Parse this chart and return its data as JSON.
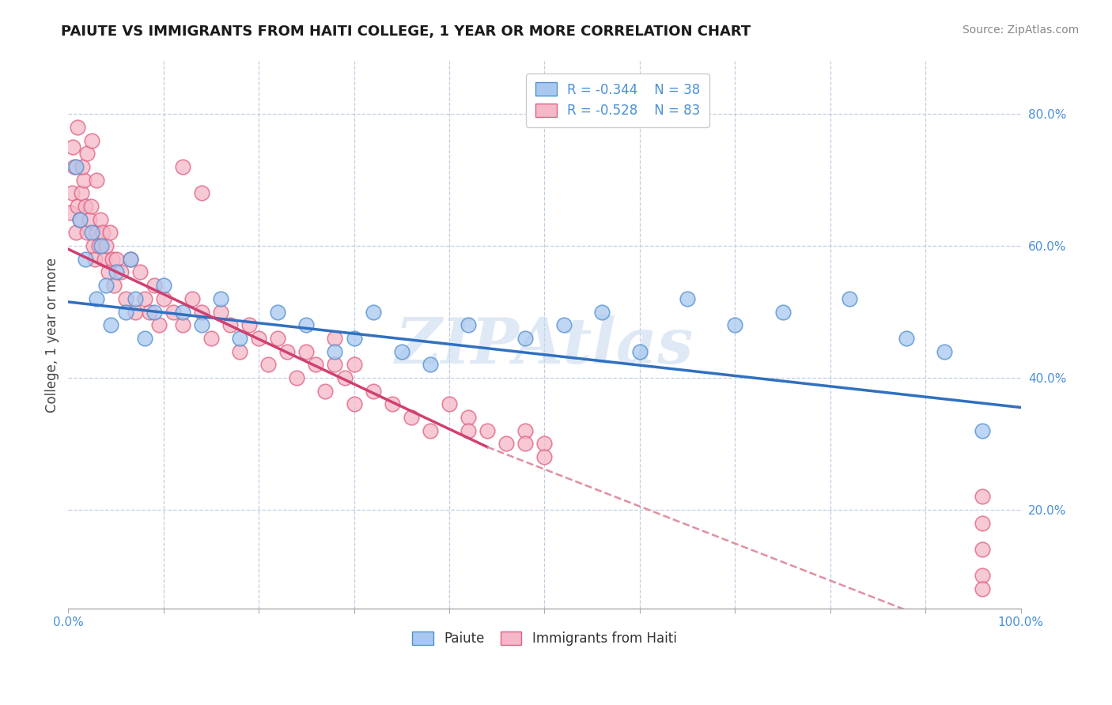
{
  "title": "PAIUTE VS IMMIGRANTS FROM HAITI COLLEGE, 1 YEAR OR MORE CORRELATION CHART",
  "source_text": "Source: ZipAtlas.com",
  "ylabel": "College, 1 year or more",
  "watermark": "ZIPAtlas",
  "legend_labels": [
    "Paiute",
    "Immigrants from Haiti"
  ],
  "legend_r": [
    "R = -0.344",
    "R = -0.528"
  ],
  "legend_n": [
    "N = 38",
    "N = 83"
  ],
  "paiute_color": "#a8c8f0",
  "haiti_color": "#f5b8c8",
  "paiute_edge_color": "#5090d0",
  "haiti_edge_color": "#e06080",
  "paiute_line_color": "#3070c0",
  "haiti_line_color": "#d04070",
  "haiti_dash_color": "#e090a0",
  "background_color": "#ffffff",
  "grid_color": "#c0cfe0",
  "axis_label_color": "#4a90d9",
  "title_color": "#1a1a1a",
  "source_color": "#888888",
  "ylabel_color": "#444444",
  "xlim": [
    0.0,
    1.0
  ],
  "ylim": [
    0.05,
    0.88
  ],
  "paiute_x": [
    0.008,
    0.012,
    0.018,
    0.025,
    0.03,
    0.035,
    0.04,
    0.045,
    0.05,
    0.06,
    0.065,
    0.07,
    0.08,
    0.09,
    0.1,
    0.12,
    0.14,
    0.16,
    0.18,
    0.22,
    0.25,
    0.28,
    0.3,
    0.32,
    0.35,
    0.38,
    0.42,
    0.48,
    0.52,
    0.56,
    0.6,
    0.65,
    0.7,
    0.75,
    0.82,
    0.88,
    0.92,
    0.96
  ],
  "paiute_y": [
    0.72,
    0.64,
    0.58,
    0.62,
    0.52,
    0.6,
    0.54,
    0.48,
    0.56,
    0.5,
    0.58,
    0.52,
    0.46,
    0.5,
    0.54,
    0.5,
    0.48,
    0.52,
    0.46,
    0.5,
    0.48,
    0.44,
    0.46,
    0.5,
    0.44,
    0.42,
    0.48,
    0.46,
    0.48,
    0.5,
    0.44,
    0.52,
    0.48,
    0.5,
    0.52,
    0.46,
    0.44,
    0.32
  ],
  "haiti_x": [
    0.002,
    0.004,
    0.006,
    0.008,
    0.01,
    0.012,
    0.014,
    0.016,
    0.018,
    0.02,
    0.022,
    0.024,
    0.026,
    0.028,
    0.03,
    0.032,
    0.034,
    0.036,
    0.038,
    0.04,
    0.042,
    0.044,
    0.046,
    0.048,
    0.05,
    0.055,
    0.06,
    0.065,
    0.07,
    0.075,
    0.08,
    0.085,
    0.09,
    0.095,
    0.1,
    0.11,
    0.12,
    0.13,
    0.14,
    0.15,
    0.16,
    0.17,
    0.18,
    0.19,
    0.2,
    0.21,
    0.22,
    0.23,
    0.24,
    0.25,
    0.26,
    0.27,
    0.28,
    0.29,
    0.3,
    0.32,
    0.34,
    0.36,
    0.38,
    0.4,
    0.42,
    0.44,
    0.46,
    0.48,
    0.5,
    0.005,
    0.01,
    0.015,
    0.02,
    0.025,
    0.03,
    0.12,
    0.14,
    0.28,
    0.3,
    0.42,
    0.48,
    0.5,
    0.96,
    0.96,
    0.96,
    0.96,
    0.96
  ],
  "haiti_y": [
    0.65,
    0.68,
    0.72,
    0.62,
    0.66,
    0.64,
    0.68,
    0.7,
    0.66,
    0.62,
    0.64,
    0.66,
    0.6,
    0.58,
    0.62,
    0.6,
    0.64,
    0.62,
    0.58,
    0.6,
    0.56,
    0.62,
    0.58,
    0.54,
    0.58,
    0.56,
    0.52,
    0.58,
    0.5,
    0.56,
    0.52,
    0.5,
    0.54,
    0.48,
    0.52,
    0.5,
    0.48,
    0.52,
    0.5,
    0.46,
    0.5,
    0.48,
    0.44,
    0.48,
    0.46,
    0.42,
    0.46,
    0.44,
    0.4,
    0.44,
    0.42,
    0.38,
    0.42,
    0.4,
    0.36,
    0.38,
    0.36,
    0.34,
    0.32,
    0.36,
    0.34,
    0.32,
    0.3,
    0.32,
    0.3,
    0.75,
    0.78,
    0.72,
    0.74,
    0.76,
    0.7,
    0.72,
    0.68,
    0.46,
    0.42,
    0.32,
    0.3,
    0.28,
    0.22,
    0.18,
    0.14,
    0.1,
    0.08
  ],
  "paiute_trend": [
    0.0,
    1.0,
    0.515,
    0.355
  ],
  "haiti_solid": [
    0.0,
    0.44,
    0.595,
    0.295
  ],
  "haiti_dash": [
    0.44,
    1.0,
    0.295,
    -0.02
  ]
}
